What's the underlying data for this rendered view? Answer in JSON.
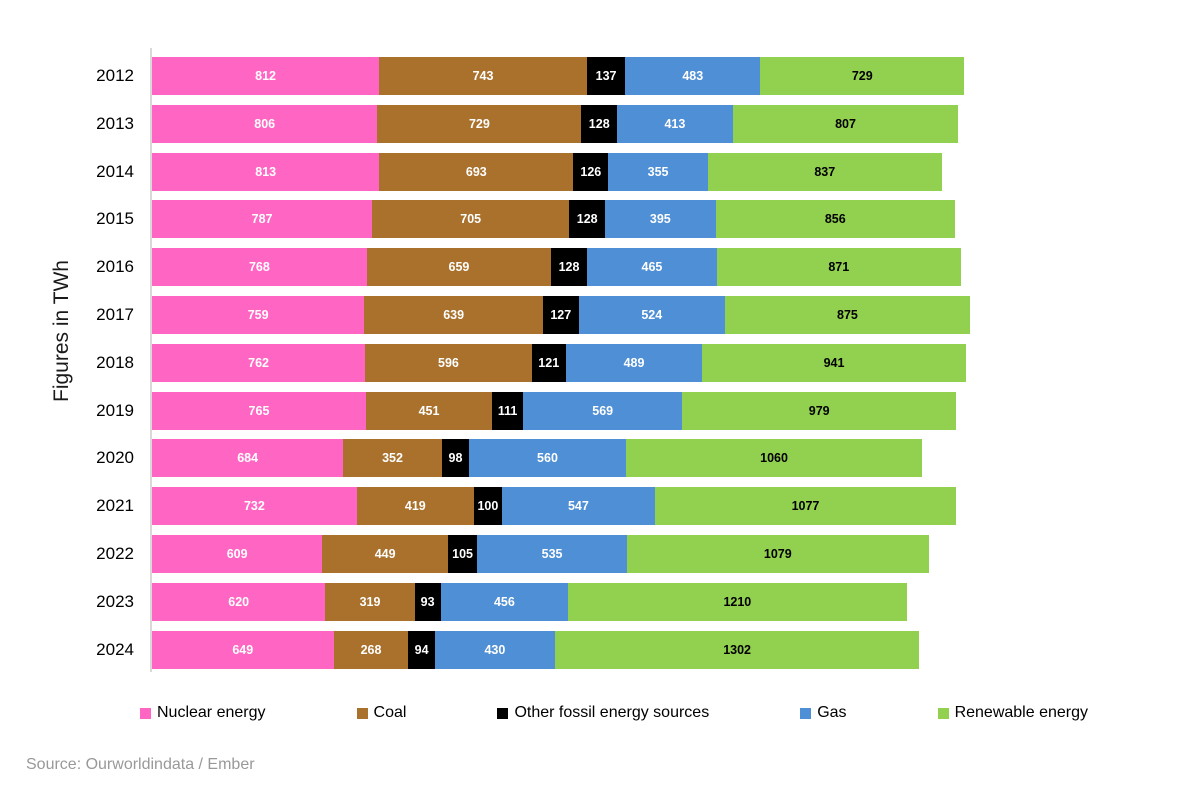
{
  "chart_data": {
    "type": "bar",
    "orientation": "horizontal",
    "stacked": true,
    "title": "",
    "xlabel": "",
    "ylabel": "Figures in TWh",
    "unit": "TWh",
    "grid": false,
    "xlim": [
      0,
      3700
    ],
    "legend_position": "bottom",
    "categories": [
      "2012",
      "2013",
      "2014",
      "2015",
      "2016",
      "2017",
      "2018",
      "2019",
      "2020",
      "2021",
      "2022",
      "2023",
      "2024"
    ],
    "series": [
      {
        "name": "Nuclear energy",
        "color": "#FF66C4",
        "label_color": "#ffffff",
        "values": [
          812,
          806,
          813,
          787,
          768,
          759,
          762,
          765,
          684,
          732,
          609,
          620,
          649
        ]
      },
      {
        "name": "Coal",
        "color": "#A9712C",
        "label_color": "#ffffff",
        "values": [
          743,
          729,
          693,
          705,
          659,
          639,
          596,
          451,
          352,
          419,
          449,
          319,
          268
        ]
      },
      {
        "name": "Other fossil energy sources",
        "color": "#000000",
        "label_color": "#ffffff",
        "values": [
          137,
          128,
          126,
          128,
          128,
          127,
          121,
          111,
          98,
          100,
          105,
          93,
          94
        ]
      },
      {
        "name": "Gas",
        "color": "#4F8FD5",
        "label_color": "#ffffff",
        "values": [
          483,
          413,
          355,
          395,
          465,
          524,
          489,
          569,
          560,
          547,
          535,
          456,
          430
        ]
      },
      {
        "name": "Renewable energy",
        "color": "#92D050",
        "label_color": "#000000",
        "values": [
          729,
          807,
          837,
          856,
          871,
          875,
          941,
          979,
          1060,
          1077,
          1079,
          1210,
          1302
        ]
      }
    ],
    "axis_line_color": "#d9d9d9",
    "source": "Source: Ourworldindata / Ember"
  }
}
